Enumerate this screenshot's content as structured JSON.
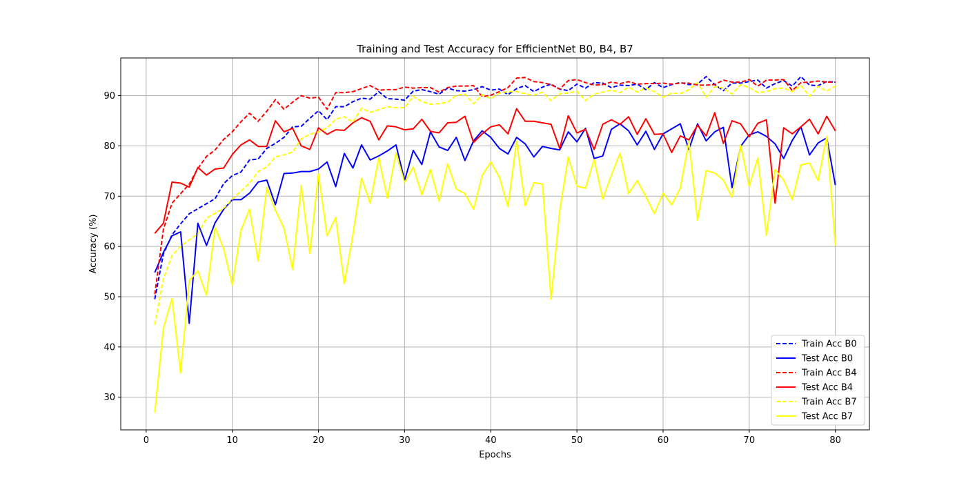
{
  "chart_data": {
    "type": "line",
    "title": "Training and Test Accuracy for EfficientNet B0, B4, B7",
    "xlabel": "Epochs",
    "ylabel": "Accuracy (%)",
    "xlim": [
      -2.95,
      83.95
    ],
    "ylim": [
      23.5,
      97.5
    ],
    "xticks": [
      0,
      10,
      20,
      30,
      40,
      50,
      60,
      70,
      80
    ],
    "yticks": [
      30,
      40,
      50,
      60,
      70,
      80,
      90
    ],
    "grid": true,
    "legend_position": "lower right",
    "x": [
      1,
      2,
      3,
      4,
      5,
      6,
      7,
      8,
      9,
      10,
      11,
      12,
      13,
      14,
      15,
      16,
      17,
      18,
      19,
      20,
      21,
      22,
      23,
      24,
      25,
      26,
      27,
      28,
      29,
      30,
      31,
      32,
      33,
      34,
      35,
      36,
      37,
      38,
      39,
      40,
      41,
      42,
      43,
      44,
      45,
      46,
      47,
      48,
      49,
      50,
      51,
      52,
      53,
      54,
      55,
      56,
      57,
      58,
      59,
      60,
      61,
      62,
      63,
      64,
      65,
      66,
      67,
      68,
      69,
      70,
      71,
      72,
      73,
      74,
      75,
      76,
      77,
      78,
      79,
      80
    ],
    "series": [
      {
        "name": "Train Acc B0",
        "color": "#0000ff",
        "dash": true,
        "values": [
          49.5,
          58.5,
          62.3,
          64.5,
          66.5,
          67.5,
          68.5,
          69.5,
          72.5,
          74.1,
          74.8,
          77.2,
          77.4,
          79.5,
          80.5,
          81.7,
          83.8,
          83.9,
          85.5,
          87.0,
          85.2,
          87.8,
          87.8,
          88.8,
          89.5,
          89.3,
          90.8,
          89.4,
          89.3,
          89.1,
          90.9,
          91.2,
          90.8,
          90.3,
          91.5,
          91.0,
          90.9,
          91.2,
          91.8,
          91.1,
          91.3,
          90.2,
          91.4,
          92.0,
          90.8,
          91.7,
          92.3,
          91.3,
          91.0,
          92.3,
          91.5,
          92.6,
          92.5,
          91.6,
          92.1,
          92.0,
          92.3,
          91.2,
          92.6,
          91.6,
          92.2,
          92.6,
          92.2,
          92.3,
          93.8,
          92.2,
          91.0,
          92.5,
          92.5,
          92.8,
          93.1,
          91.5,
          92.4,
          93.0,
          91.9,
          93.8,
          92.1,
          92.0,
          92.8,
          92.7
        ]
      },
      {
        "name": "Test Acc B0",
        "color": "#0000ff",
        "dash": false,
        "values": [
          54.8,
          58.8,
          62.1,
          62.9,
          44.7,
          64.6,
          60.2,
          64.7,
          67.4,
          69.3,
          69.3,
          70.6,
          72.8,
          73.2,
          68.3,
          74.5,
          74.6,
          74.9,
          74.9,
          75.4,
          76.8,
          71.9,
          78.5,
          75.6,
          80.2,
          77.2,
          78.0,
          79.0,
          80.2,
          73.1,
          79.1,
          76.3,
          82.8,
          79.8,
          79.1,
          81.7,
          77.1,
          81.0,
          83.0,
          81.7,
          79.5,
          78.4,
          81.7,
          80.4,
          77.8,
          79.9,
          79.5,
          79.2,
          82.8,
          80.8,
          83.5,
          77.5,
          78.0,
          83.3,
          84.4,
          83.0,
          80.2,
          82.9,
          79.3,
          82.4,
          83.4,
          84.4,
          79.3,
          84.4,
          81.0,
          82.8,
          83.7,
          71.7,
          79.9,
          82.2,
          82.8,
          81.9,
          80.4,
          77.5,
          81.1,
          83.8,
          78.2,
          80.6,
          81.6,
          72.2
        ]
      },
      {
        "name": "Train Acc B4",
        "color": "#ff0000",
        "dash": true,
        "values": [
          50.5,
          63.4,
          68.6,
          70.5,
          72.4,
          75.5,
          77.9,
          79.2,
          81.3,
          82.8,
          84.8,
          86.5,
          84.9,
          86.9,
          89.2,
          87.3,
          88.7,
          90.0,
          89.5,
          89.7,
          87.3,
          90.6,
          90.6,
          90.8,
          91.4,
          92.0,
          91.1,
          91.2,
          91.2,
          91.7,
          91.5,
          91.6,
          91.6,
          90.7,
          91.6,
          91.9,
          91.9,
          92.0,
          89.8,
          90.1,
          90.8,
          91.6,
          93.5,
          93.6,
          92.8,
          92.6,
          92.2,
          91.3,
          93.0,
          93.2,
          92.6,
          92.1,
          92.2,
          92.7,
          92.4,
          92.8,
          92.3,
          92.4,
          92.4,
          92.5,
          92.3,
          92.5,
          92.5,
          92.1,
          92.1,
          92.2,
          93.1,
          92.7,
          92.7,
          93.2,
          91.9,
          93.1,
          93.1,
          93.2,
          91.0,
          92.6,
          92.7,
          92.9,
          92.7,
          92.7
        ]
      },
      {
        "name": "Test Acc B4",
        "color": "#ff0000",
        "dash": false,
        "values": [
          62.6,
          64.6,
          72.8,
          72.6,
          71.8,
          75.7,
          74.2,
          75.4,
          75.6,
          78.3,
          80.2,
          81.2,
          79.9,
          79.9,
          85.0,
          82.8,
          83.5,
          80.0,
          79.3,
          83.6,
          82.3,
          83.2,
          83.1,
          84.6,
          85.6,
          84.9,
          81.2,
          84.0,
          83.8,
          83.2,
          83.4,
          85.3,
          82.9,
          82.6,
          84.6,
          84.7,
          85.9,
          80.7,
          82.4,
          83.8,
          84.2,
          82.4,
          87.4,
          84.9,
          84.9,
          84.6,
          84.3,
          79.5,
          86.0,
          82.6,
          83.3,
          79.3,
          84.3,
          85.2,
          84.3,
          85.8,
          82.3,
          85.4,
          82.3,
          82.4,
          78.7,
          82.0,
          81.2,
          84.1,
          82.0,
          86.6,
          80.5,
          85.0,
          84.4,
          81.8,
          84.5,
          85.2,
          68.6,
          83.6,
          82.4,
          83.8,
          85.3,
          82.4,
          85.9,
          83.0
        ]
      },
      {
        "name": "Train Acc B7",
        "color": "#ffff00",
        "dash": true,
        "values": [
          44.4,
          53.5,
          58.2,
          60.0,
          61.3,
          62.5,
          65.6,
          66.6,
          67.6,
          69.4,
          71.0,
          72.6,
          74.9,
          75.8,
          77.8,
          78.2,
          78.8,
          81.4,
          82.3,
          82.8,
          83.6,
          85.3,
          85.8,
          84.7,
          87.5,
          86.7,
          87.2,
          87.8,
          87.6,
          87.6,
          89.9,
          88.8,
          88.3,
          88.4,
          88.7,
          90.1,
          90.3,
          88.4,
          90.2,
          89.4,
          90.5,
          90.8,
          90.8,
          90.4,
          90.1,
          90.7,
          89.0,
          90.4,
          90.5,
          90.9,
          89.0,
          90.3,
          90.7,
          91.1,
          90.6,
          91.7,
          90.7,
          91.5,
          90.8,
          89.7,
          90.5,
          90.4,
          91.2,
          92.6,
          89.7,
          91.8,
          91.5,
          90.3,
          92.2,
          91.6,
          90.6,
          90.8,
          91.4,
          91.5,
          90.8,
          92.0,
          89.9,
          91.9,
          90.9,
          91.9
        ]
      },
      {
        "name": "Test Acc B7",
        "color": "#ffff00",
        "dash": false,
        "values": [
          26.9,
          43.7,
          49.6,
          34.8,
          53.2,
          55.1,
          50.3,
          63.8,
          59.5,
          52.3,
          63.2,
          67.4,
          57.1,
          71.7,
          67.2,
          63.6,
          55.4,
          72.1,
          58.6,
          74.5,
          62.1,
          65.8,
          52.6,
          62.3,
          73.6,
          68.6,
          77.6,
          69.6,
          78.6,
          72.7,
          75.8,
          70.3,
          75.3,
          69.0,
          76.4,
          71.4,
          70.5,
          67.4,
          74.1,
          76.8,
          73.8,
          67.9,
          81.0,
          68.1,
          72.7,
          72.4,
          49.5,
          67.1,
          77.8,
          72.0,
          71.6,
          77.3,
          69.4,
          74.2,
          78.5,
          70.5,
          73.1,
          69.9,
          66.5,
          70.6,
          68.3,
          71.6,
          80.9,
          65.2,
          75.1,
          74.6,
          73.2,
          69.8,
          80.2,
          72.0,
          77.6,
          62.2,
          75.3,
          73.2,
          69.3,
          76.2,
          76.6,
          73.1,
          81.9,
          60.2
        ]
      }
    ]
  }
}
